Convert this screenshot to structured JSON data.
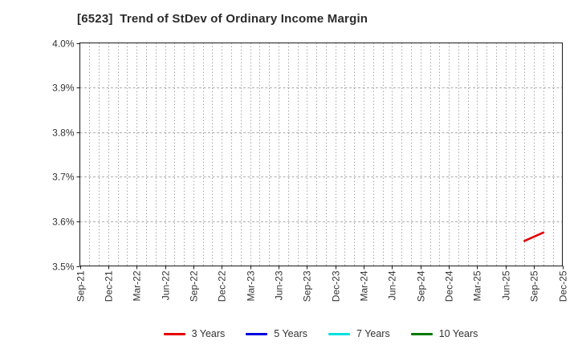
{
  "chart_data": {
    "type": "line",
    "title": "[6523]  Trend of StDev of Ordinary Income Margin",
    "ylabel": "",
    "xlabel": "",
    "ylim": [
      3.5,
      4.0
    ],
    "y_major_step": 0.1,
    "y_ticks": [
      "4.0%",
      "3.9%",
      "3.8%",
      "3.7%",
      "3.6%",
      "3.5%"
    ],
    "categories": [
      "Sep-21",
      "Dec-21",
      "Mar-22",
      "Jun-22",
      "Sep-22",
      "Dec-22",
      "Mar-23",
      "Jun-23",
      "Sep-23",
      "Dec-23",
      "Mar-24",
      "Jun-24",
      "Sep-24",
      "Dec-24",
      "Mar-25",
      "Jun-25",
      "Sep-25",
      "Dec-25"
    ],
    "x_start_month": "2021-09",
    "x_end_month": "2025-12",
    "grid": {
      "vertical_style": "dotted-monthly",
      "horizontal_style": "dashed-major",
      "vertical_color": "#a8a8a8",
      "horizontal_color": "#ababab"
    },
    "legend_position": "bottom",
    "series": [
      {
        "name": "3 Years",
        "color": "#e60000",
        "points": [
          {
            "x": "2025-08",
            "y": 3.556
          },
          {
            "x": "2025-10",
            "y": 3.575
          }
        ]
      },
      {
        "name": "5 Years",
        "color": "#0000e0",
        "points": []
      },
      {
        "name": "7 Years",
        "color": "#00e0e0",
        "points": []
      },
      {
        "name": "10 Years",
        "color": "#007a00",
        "points": []
      }
    ]
  }
}
